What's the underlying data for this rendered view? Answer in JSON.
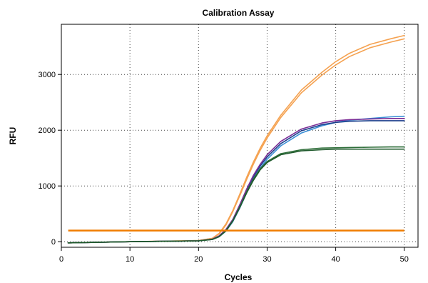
{
  "chart_data": {
    "type": "line",
    "title": "Calibration Assay",
    "xlabel": "Cycles",
    "ylabel": "RFU",
    "xlim": [
      0,
      52
    ],
    "ylim": [
      -100,
      3900
    ],
    "xticks": [
      0,
      10,
      20,
      30,
      40,
      50
    ],
    "yticks": [
      0,
      1000,
      2000,
      3000
    ],
    "grid": true,
    "threshold": {
      "value": 200,
      "color": "#f07d00"
    },
    "series": [
      {
        "color": "#f5a251",
        "x": [
          1,
          10,
          20,
          22,
          23,
          24,
          25,
          26,
          27,
          28,
          29,
          30,
          32,
          35,
          38,
          40,
          42,
          45,
          48,
          50
        ],
        "y": [
          -20,
          0,
          20,
          60,
          150,
          320,
          560,
          850,
          1150,
          1430,
          1680,
          1900,
          2270,
          2720,
          3040,
          3230,
          3380,
          3540,
          3640,
          3700
        ]
      },
      {
        "color": "#f5a251",
        "x": [
          1,
          10,
          20,
          22,
          23,
          24,
          25,
          26,
          27,
          28,
          29,
          30,
          32,
          35,
          38,
          40,
          42,
          45,
          48,
          50
        ],
        "y": [
          -20,
          0,
          20,
          60,
          140,
          300,
          540,
          820,
          1110,
          1390,
          1640,
          1860,
          2230,
          2670,
          2990,
          3170,
          3320,
          3480,
          3580,
          3640
        ]
      },
      {
        "color": "#3a8fd6",
        "x": [
          1,
          10,
          20,
          22,
          23,
          24,
          25,
          26,
          27,
          28,
          29,
          30,
          32,
          35,
          38,
          40,
          42,
          45,
          48,
          50
        ],
        "y": [
          -20,
          0,
          15,
          40,
          90,
          190,
          360,
          600,
          870,
          1120,
          1320,
          1480,
          1720,
          1950,
          2080,
          2140,
          2180,
          2210,
          2240,
          2250
        ]
      },
      {
        "color": "#1c3f8c",
        "x": [
          1,
          10,
          20,
          22,
          23,
          24,
          25,
          26,
          27,
          28,
          29,
          30,
          32,
          35,
          38,
          40,
          42,
          45,
          48,
          50
        ],
        "y": [
          -20,
          0,
          15,
          45,
          100,
          210,
          390,
          640,
          910,
          1160,
          1360,
          1520,
          1760,
          1990,
          2100,
          2140,
          2160,
          2170,
          2170,
          2170
        ]
      },
      {
        "color": "#7a2d96",
        "x": [
          1,
          10,
          20,
          22,
          23,
          24,
          25,
          26,
          27,
          28,
          29,
          30,
          32,
          35,
          38,
          40,
          42,
          45,
          48,
          50
        ],
        "y": [
          -20,
          0,
          15,
          45,
          105,
          220,
          400,
          660,
          940,
          1190,
          1390,
          1560,
          1800,
          2020,
          2130,
          2170,
          2190,
          2200,
          2210,
          2210
        ]
      },
      {
        "color": "#2f6f3a",
        "x": [
          1,
          10,
          20,
          22,
          23,
          24,
          25,
          26,
          27,
          28,
          29,
          30,
          32,
          35,
          38,
          40,
          42,
          45,
          48,
          50
        ],
        "y": [
          -20,
          0,
          15,
          40,
          95,
          200,
          380,
          620,
          890,
          1120,
          1310,
          1440,
          1580,
          1650,
          1680,
          1685,
          1690,
          1695,
          1700,
          1700
        ]
      },
      {
        "color": "#1f5a2c",
        "x": [
          1,
          10,
          20,
          22,
          23,
          24,
          25,
          26,
          27,
          28,
          29,
          30,
          32,
          35,
          38,
          40,
          42,
          45,
          48,
          50
        ],
        "y": [
          -20,
          0,
          15,
          40,
          90,
          195,
          370,
          610,
          870,
          1100,
          1290,
          1420,
          1560,
          1630,
          1650,
          1660,
          1660,
          1660,
          1660,
          1660
        ]
      }
    ]
  }
}
